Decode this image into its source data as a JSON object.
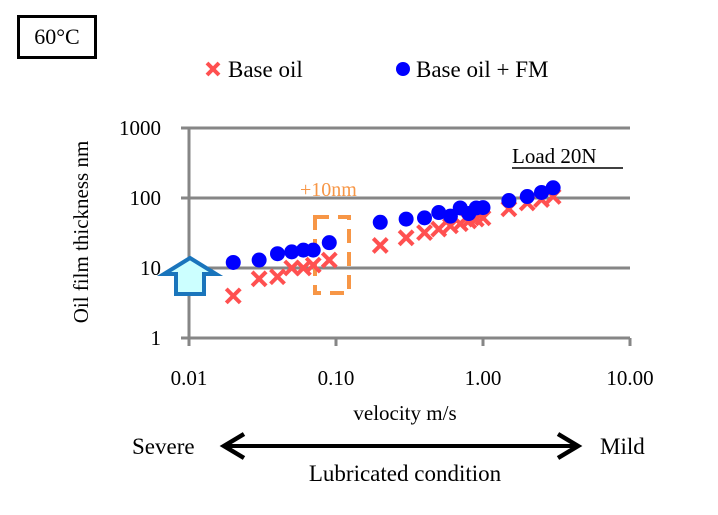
{
  "header": {
    "temperature_label": "60°C"
  },
  "legend": [
    {
      "label": "Base oil",
      "marker": "x-cross",
      "color": "#ff5050"
    },
    {
      "label": "Base oil + FM",
      "marker": "circle",
      "color": "#0000ff"
    }
  ],
  "annotations": {
    "load_label": "Load 20N",
    "delta_label": "+10nm",
    "delta_color": "#f79646",
    "up_arrow_color": "#1a75bc",
    "up_arrow_fill": "#ccffff"
  },
  "condition_scale": {
    "left_label": "Severe",
    "right_label": "Mild",
    "caption": "Lubricated condition"
  },
  "chart_data": {
    "type": "scatter",
    "title": "",
    "xlabel": "velocity m/s",
    "ylabel": "Oil film thickness nm",
    "xscale": "log",
    "yscale": "log",
    "xlim": [
      0.01,
      10
    ],
    "ylim": [
      1,
      1000
    ],
    "xticks": [
      "0.01",
      "0.10",
      "1.00",
      "10.00"
    ],
    "xtick_values": [
      0.01,
      0.1,
      1,
      10
    ],
    "yticks": [
      "1",
      "10",
      "100",
      "1000"
    ],
    "ytick_values": [
      1,
      10,
      100,
      1000
    ],
    "grid": "horizontal",
    "legend_position": "top",
    "series": [
      {
        "name": "Base oil",
        "marker": "x",
        "color": "#ff5050",
        "x": [
          0.02,
          0.03,
          0.04,
          0.05,
          0.06,
          0.07,
          0.09,
          0.2,
          0.3,
          0.4,
          0.5,
          0.6,
          0.7,
          0.8,
          0.9,
          1.0,
          1.5,
          2.0,
          2.5,
          3.0
        ],
        "y": [
          4,
          7,
          7.5,
          10,
          10,
          11,
          13,
          21,
          27,
          32,
          36,
          40,
          43,
          47,
          50,
          52,
          70,
          85,
          95,
          105
        ]
      },
      {
        "name": "Base oil + FM",
        "marker": "circle",
        "color": "#0000ff",
        "x": [
          0.02,
          0.03,
          0.04,
          0.05,
          0.06,
          0.07,
          0.09,
          0.2,
          0.3,
          0.4,
          0.5,
          0.6,
          0.7,
          0.8,
          0.9,
          1.0,
          1.5,
          2.0,
          2.5,
          3.0
        ],
        "y": [
          12,
          13,
          16,
          17,
          18,
          18,
          23,
          45,
          50,
          52,
          62,
          55,
          72,
          60,
          72,
          73,
          92,
          105,
          120,
          140
        ]
      }
    ]
  }
}
